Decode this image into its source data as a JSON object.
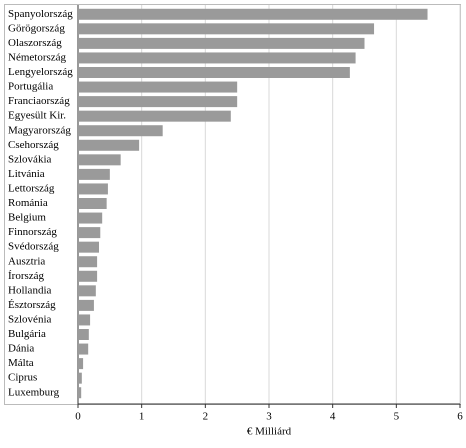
{
  "chart_data": {
    "type": "bar",
    "orientation": "horizontal",
    "x_label": "€ Milliárd",
    "categories": [
      "Spanyolország",
      "Görögország",
      "Olaszország",
      "Németország",
      "Lengyelország",
      "Portugália",
      "Franciaország",
      "Egyesült Kir.",
      "Magyarország",
      "Csehország",
      "Szlovákia",
      "Litvánia",
      "Lettország",
      "Románia",
      "Belgium",
      "Finnország",
      "Svédország",
      "Ausztria",
      "Írország",
      "Hollandia",
      "Észtország",
      "Szlovénia",
      "Bulgária",
      "Dánia",
      "Málta",
      "Ciprus",
      "Luxemburg"
    ],
    "values": [
      5.49,
      4.65,
      4.5,
      4.36,
      4.27,
      2.5,
      2.5,
      2.4,
      1.33,
      0.96,
      0.67,
      0.5,
      0.47,
      0.45,
      0.38,
      0.35,
      0.33,
      0.3,
      0.3,
      0.28,
      0.25,
      0.19,
      0.17,
      0.16,
      0.08,
      0.06,
      0.05
    ],
    "color": "#9a9a9a",
    "xlim": [
      0,
      6
    ],
    "xticks": [
      0,
      1,
      2,
      3,
      4,
      5,
      6
    ],
    "grid": true
  }
}
